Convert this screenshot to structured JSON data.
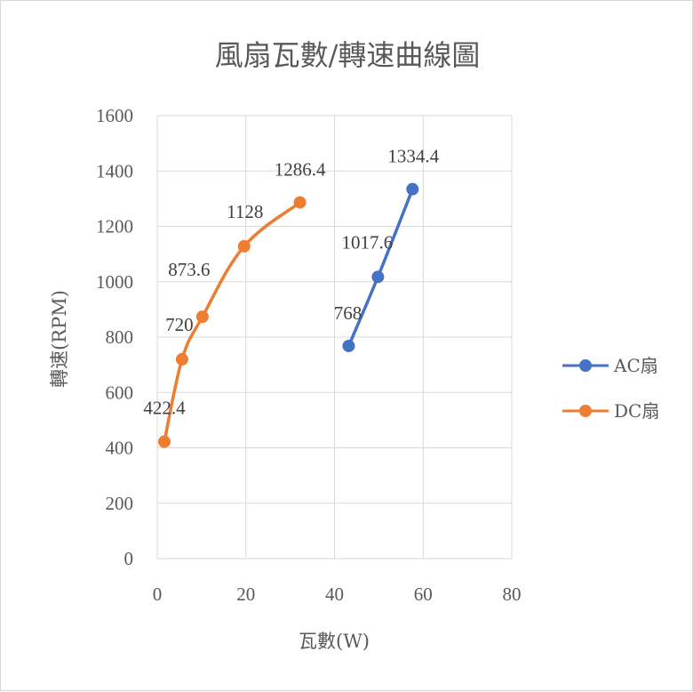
{
  "chart_data": {
    "type": "scatter",
    "title": "風扇瓦數/轉速曲線圖",
    "xlabel": "瓦數(W)",
    "ylabel": "轉速(RPM)",
    "xlim": [
      0,
      80
    ],
    "ylim": [
      0,
      1600
    ],
    "xticks": [
      0,
      20,
      40,
      60,
      80
    ],
    "yticks": [
      0,
      200,
      400,
      600,
      800,
      1000,
      1200,
      1400,
      1600
    ],
    "grid": true,
    "legend_position": "right",
    "series": [
      {
        "name": "AC扇",
        "color": "#4472C4",
        "x": [
          43.2,
          49.8,
          57.6
        ],
        "y": [
          768,
          1017.6,
          1334.4
        ],
        "labels": [
          "768",
          "1017.6",
          "1334.4"
        ]
      },
      {
        "name": "DC扇",
        "color": "#ED7D31",
        "x": [
          1.6,
          5.6,
          10.2,
          19.6,
          32.2
        ],
        "y": [
          422.4,
          720,
          873.6,
          1128,
          1286.4
        ],
        "labels": [
          "422.4",
          "720",
          "873.6",
          "1128",
          "1286.4"
        ]
      }
    ]
  }
}
